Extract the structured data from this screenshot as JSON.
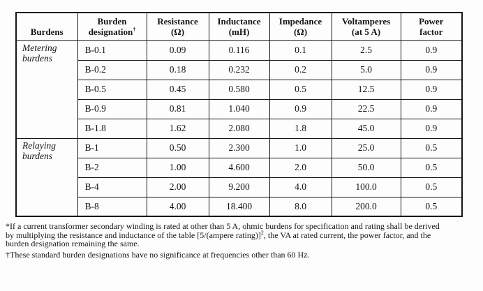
{
  "colors": {
    "background": "#fdfdfd",
    "border": "#161616",
    "text": "#141414"
  },
  "table": {
    "headers": [
      {
        "line1": "Burdens",
        "line2": "",
        "sup": ""
      },
      {
        "line1": "Burden",
        "line2": "designation",
        "sup": "†"
      },
      {
        "line1": "Resistance",
        "line2": "(Ω)",
        "sup": ""
      },
      {
        "line1": "Inductance",
        "line2": "(mH)",
        "sup": ""
      },
      {
        "line1": "Impedance",
        "line2": "(Ω)",
        "sup": ""
      },
      {
        "line1": "Voltamperes",
        "line2": "(at 5 A)",
        "sup": ""
      },
      {
        "line1": "Power",
        "line2": "factor",
        "sup": ""
      }
    ],
    "sections": [
      {
        "label_line1": "Metering",
        "label_line2": "burdens",
        "rows": [
          {
            "designation": "B-0.1",
            "resistance": "0.09",
            "inductance": "0.116",
            "impedance": "0.1",
            "voltamperes": "2.5",
            "power_factor": "0.9"
          },
          {
            "designation": "B-0.2",
            "resistance": "0.18",
            "inductance": "0.232",
            "impedance": "0.2",
            "voltamperes": "5.0",
            "power_factor": "0.9"
          },
          {
            "designation": "B-0.5",
            "resistance": "0.45",
            "inductance": "0.580",
            "impedance": "0.5",
            "voltamperes": "12.5",
            "power_factor": "0.9"
          },
          {
            "designation": "B-0.9",
            "resistance": "0.81",
            "inductance": "1.040",
            "impedance": "0.9",
            "voltamperes": "22.5",
            "power_factor": "0.9"
          },
          {
            "designation": "B-1.8",
            "resistance": "1.62",
            "inductance": "2.080",
            "impedance": "1.8",
            "voltamperes": "45.0",
            "power_factor": "0.9"
          }
        ]
      },
      {
        "label_line1": "Relaying",
        "label_line2": "burdens",
        "rows": [
          {
            "designation": "B-1",
            "resistance": "0.50",
            "inductance": "2.300",
            "impedance": "1.0",
            "voltamperes": "25.0",
            "power_factor": "0.5"
          },
          {
            "designation": "B-2",
            "resistance": "1.00",
            "inductance": "4.600",
            "impedance": "2.0",
            "voltamperes": "50.0",
            "power_factor": "0.5"
          },
          {
            "designation": "B-4",
            "resistance": "2.00",
            "inductance": "9.200",
            "impedance": "4.0",
            "voltamperes": "100.0",
            "power_factor": "0.5"
          },
          {
            "designation": "B-8",
            "resistance": "4.00",
            "inductance": "18.400",
            "impedance": "8.0",
            "voltamperes": "200.0",
            "power_factor": "0.5"
          }
        ]
      }
    ]
  },
  "footnotes": {
    "f1_line1": "*If a current transformer secondary winding is rated at other than 5 A, ohmic burdens for specification and rating shall be derived",
    "f1_line2_pre": "by multiplying the resistance and inductance of the table [5/(ampere rating)]",
    "f1_line2_sup": "2",
    "f1_line2_post": ", the VA at rated current, the power factor, and the",
    "f1_line3": "burden designation remaining the same.",
    "f2": "†These standard burden designations have no significance at frequencies other than 60 Hz."
  }
}
